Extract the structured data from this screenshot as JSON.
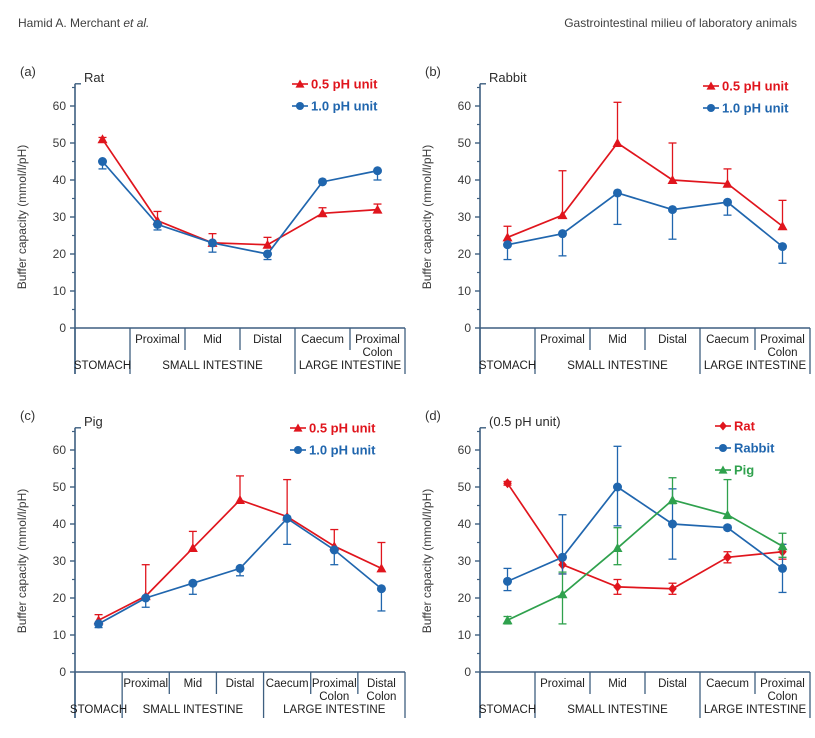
{
  "header": {
    "left_main": "Hamid A. Merchant ",
    "left_suffix": "et al.",
    "right": "Gastrointestinal milieu of laboratory animals"
  },
  "colors": {
    "red": "#e0151d",
    "blue": "#2066ae",
    "green": "#2fa14d",
    "axis": "#3e5f80",
    "text": "#333333",
    "table_text": "#1c1c1c"
  },
  "chart_data": [
    {
      "id": "a",
      "type": "line",
      "panel_label": "(a)",
      "title": "Rat",
      "ylabel": "Buffer capacity (mmol/l/pH)",
      "ylim": [
        0,
        66
      ],
      "yticks": [
        0,
        10,
        20,
        30,
        40,
        50,
        60
      ],
      "segments": [
        [],
        [
          "Proximal"
        ],
        [
          "Mid"
        ],
        [
          "Distal"
        ],
        [
          "Caecum"
        ],
        [
          "Proximal",
          "Colon"
        ]
      ],
      "groups": [
        {
          "label": "STOMACH",
          "span": 1
        },
        {
          "label": "SMALL INTESTINE",
          "span": 3
        },
        {
          "label": "LARGE INTESTINE",
          "span": 2
        }
      ],
      "legend_position": "top-right",
      "series": [
        {
          "name": "0.5 pH unit",
          "color": "red",
          "marker": "triangle",
          "values": [
            51,
            29,
            23,
            22.5,
            31,
            32
          ],
          "err_up": [
            0.5,
            2.5,
            2.5,
            2,
            1.5,
            1.5
          ],
          "err_down": [
            0,
            0,
            0,
            0,
            0,
            0
          ]
        },
        {
          "name": "1.0 pH unit",
          "color": "blue",
          "marker": "circle",
          "values": [
            45,
            28,
            23,
            20,
            39.5,
            42.5
          ],
          "err_up": [
            0,
            0,
            0,
            0,
            0,
            0
          ],
          "err_down": [
            2,
            1.5,
            2.5,
            1.5,
            0,
            2.5
          ]
        }
      ]
    },
    {
      "id": "b",
      "type": "line",
      "panel_label": "(b)",
      "title": "Rabbit",
      "ylabel": "Buffer capacity (mmol/l/pH)",
      "ylim": [
        0,
        66
      ],
      "yticks": [
        0,
        10,
        20,
        30,
        40,
        50,
        60
      ],
      "segments": [
        [],
        [
          "Proximal"
        ],
        [
          "Mid"
        ],
        [
          "Distal"
        ],
        [
          "Caecum"
        ],
        [
          "Proximal",
          "Colon"
        ]
      ],
      "groups": [
        {
          "label": "STOMACH",
          "span": 1
        },
        {
          "label": "SMALL INTESTINE",
          "span": 3
        },
        {
          "label": "LARGE INTESTINE",
          "span": 2
        }
      ],
      "legend_position": "top-right",
      "series": [
        {
          "name": "0.5 pH unit",
          "color": "red",
          "marker": "triangle",
          "values": [
            24.5,
            30.5,
            50,
            40,
            39,
            27.5
          ],
          "err_up": [
            3,
            12,
            11,
            10,
            4,
            7
          ],
          "err_down": [
            0,
            0,
            0,
            0,
            0,
            0
          ]
        },
        {
          "name": "1.0 pH unit",
          "color": "blue",
          "marker": "circle",
          "values": [
            22.5,
            25.5,
            36.5,
            32,
            34,
            22
          ],
          "err_up": [
            0,
            0,
            0,
            0,
            0,
            0
          ],
          "err_down": [
            4,
            6,
            8.5,
            8,
            3.5,
            4.5
          ]
        }
      ]
    },
    {
      "id": "c",
      "type": "line",
      "panel_label": "(c)",
      "title": "Pig",
      "ylabel": "Buffer capacity (mmol/l/pH)",
      "ylim": [
        0,
        66
      ],
      "yticks": [
        0,
        10,
        20,
        30,
        40,
        50,
        60
      ],
      "segments": [
        [],
        [
          "Proximal"
        ],
        [
          "Mid"
        ],
        [
          "Distal"
        ],
        [
          "Caecum"
        ],
        [
          "Proximal",
          "Colon"
        ],
        [
          "Distal",
          "Colon"
        ]
      ],
      "groups": [
        {
          "label": "STOMACH",
          "span": 1
        },
        {
          "label": "SMALL INTESTINE",
          "span": 3
        },
        {
          "label": "LARGE INTESTINE",
          "span": 3
        }
      ],
      "legend_position": "top-right",
      "series": [
        {
          "name": "0.5 pH unit",
          "color": "red",
          "marker": "triangle",
          "values": [
            14,
            20.5,
            33.5,
            46.5,
            42,
            34,
            28
          ],
          "err_up": [
            1.5,
            8.5,
            4.5,
            6.5,
            10,
            4.5,
            7
          ],
          "err_down": [
            0,
            0,
            0,
            0,
            0,
            0,
            0
          ]
        },
        {
          "name": "1.0 pH unit",
          "color": "blue",
          "marker": "circle",
          "values": [
            13,
            20,
            24,
            28,
            41.5,
            33,
            22.5
          ],
          "err_up": [
            0,
            0,
            0,
            0,
            0,
            0,
            0
          ],
          "err_down": [
            1,
            2.5,
            3,
            2,
            7,
            4,
            6
          ]
        }
      ]
    },
    {
      "id": "d",
      "type": "line",
      "panel_label": "(d)",
      "title": "(0.5 pH unit)",
      "ylabel": "Buffer capacity (mmol/l/pH)",
      "ylim": [
        0,
        66
      ],
      "yticks": [
        0,
        10,
        20,
        30,
        40,
        50,
        60
      ],
      "segments": [
        [],
        [
          "Proximal"
        ],
        [
          "Mid"
        ],
        [
          "Distal"
        ],
        [
          "Caecum"
        ],
        [
          "Proximal",
          "Colon"
        ]
      ],
      "groups": [
        {
          "label": "STOMACH",
          "span": 1
        },
        {
          "label": "SMALL INTESTINE",
          "span": 3
        },
        {
          "label": "LARGE INTESTINE",
          "span": 2
        }
      ],
      "legend_position": "top-right",
      "series": [
        {
          "name": "Rat",
          "color": "red",
          "marker": "diamond",
          "values": [
            51,
            29,
            23,
            22.5,
            31,
            32.5
          ],
          "err_up": [
            0.5,
            2.5,
            2,
            1.5,
            1.5,
            2
          ],
          "err_down": [
            0.5,
            2.5,
            2,
            1.5,
            1.5,
            2
          ]
        },
        {
          "name": "Rabbit",
          "color": "blue",
          "marker": "circle",
          "values": [
            24.5,
            31,
            50,
            40,
            39,
            28
          ],
          "err_up": [
            3.5,
            11.5,
            11,
            9.5,
            0.5,
            6.5
          ],
          "err_down": [
            2.5,
            4.5,
            10.5,
            9.5,
            0.5,
            6.5
          ]
        },
        {
          "name": "Pig",
          "color": "green",
          "marker": "triangle",
          "values": [
            14,
            21,
            33.5,
            46.5,
            42.5,
            34
          ],
          "err_up": [
            1,
            6,
            5.5,
            6,
            9.5,
            3.5
          ],
          "err_down": [
            1,
            8,
            4.5,
            1,
            1,
            3
          ]
        }
      ]
    }
  ]
}
